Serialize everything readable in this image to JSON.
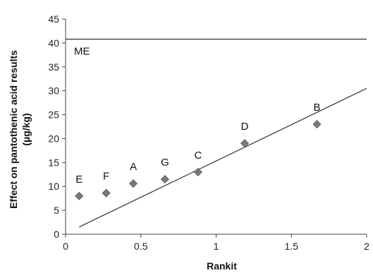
{
  "chart_data": {
    "type": "scatter",
    "title": "",
    "xlabel": "Rankit",
    "ylabel_lines": [
      "Effect on pantothenic acid results",
      "(µg/kg)"
    ],
    "xlim": [
      0,
      2
    ],
    "ylim": [
      0,
      45
    ],
    "xticks": [
      0,
      0.5,
      1,
      1.5,
      2
    ],
    "xtick_labels": [
      "0",
      "0.5",
      "1",
      "1.5",
      "2"
    ],
    "yticks": [
      0,
      5,
      10,
      15,
      20,
      25,
      30,
      35,
      40,
      45
    ],
    "ytick_labels": [
      "0",
      "5",
      "10",
      "15",
      "20",
      "25",
      "30",
      "35",
      "40",
      "45"
    ],
    "grid": false,
    "legend": "none",
    "points": [
      {
        "label": "E",
        "x": 0.09,
        "y": 8.0
      },
      {
        "label": "F",
        "x": 0.27,
        "y": 8.6
      },
      {
        "label": "A",
        "x": 0.45,
        "y": 10.6
      },
      {
        "label": "G",
        "x": 0.66,
        "y": 11.5
      },
      {
        "label": "C",
        "x": 0.88,
        "y": 13.0
      },
      {
        "label": "D",
        "x": 1.19,
        "y": 19.0
      },
      {
        "label": "B",
        "x": 1.67,
        "y": 23.0
      }
    ],
    "reference_line": {
      "label": "ME",
      "y": 40.8
    },
    "fit_line": {
      "x1": 0.09,
      "y1": 1.5,
      "x2": 2.0,
      "y2": 30.5
    },
    "colors": {
      "marker": "#7a7a7a",
      "marker_edge": "#5a5a5a",
      "line": "#333333",
      "axis": "#444444"
    }
  }
}
